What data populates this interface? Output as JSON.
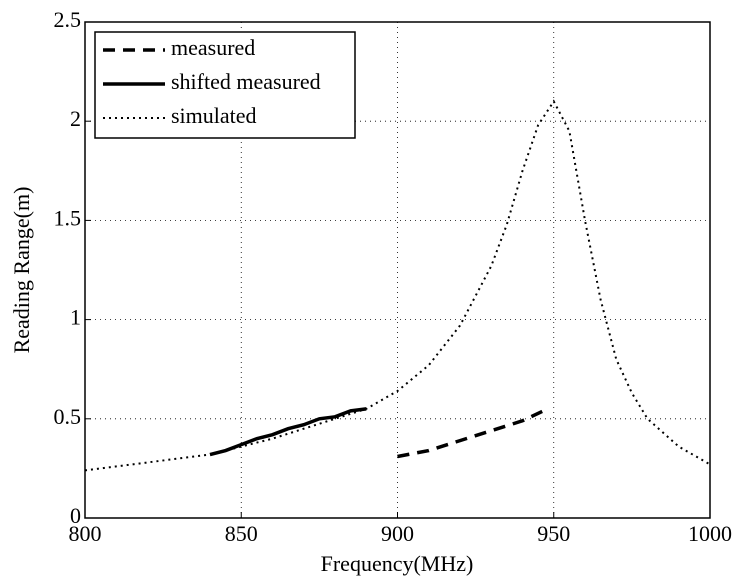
{
  "chart_data": {
    "type": "line",
    "xlabel": "Frequency(MHz)",
    "ylabel": "Reading Range(m)",
    "xlim": [
      800,
      1000
    ],
    "xticks": [
      800,
      850,
      900,
      950,
      1000
    ],
    "ylim": [
      0,
      2.5
    ],
    "yticks": [
      0,
      0.5,
      1,
      1.5,
      2,
      2.5
    ],
    "grid": true,
    "legend": "upper left",
    "series": [
      {
        "name": "measured",
        "color": "#000000",
        "dash": "dashed",
        "x": [
          900,
          910,
          920,
          930,
          940,
          948
        ],
        "values": [
          0.31,
          0.34,
          0.39,
          0.44,
          0.49,
          0.55
        ]
      },
      {
        "name": "shifted measured",
        "color": "#000000",
        "dash": "solid",
        "x": [
          840,
          845,
          850,
          855,
          860,
          865,
          870,
          875,
          880,
          885,
          890
        ],
        "values": [
          0.32,
          0.34,
          0.37,
          0.4,
          0.42,
          0.45,
          0.47,
          0.5,
          0.51,
          0.54,
          0.55
        ]
      },
      {
        "name": "simulated",
        "color": "#000000",
        "dash": "dotted",
        "x": [
          800,
          810,
          820,
          830,
          840,
          850,
          860,
          870,
          880,
          890,
          900,
          910,
          920,
          930,
          935,
          940,
          945,
          950,
          955,
          960,
          965,
          970,
          975,
          980,
          990,
          1000
        ],
        "values": [
          0.24,
          0.26,
          0.28,
          0.3,
          0.32,
          0.36,
          0.4,
          0.45,
          0.5,
          0.55,
          0.64,
          0.77,
          0.97,
          1.27,
          1.48,
          1.75,
          1.98,
          2.1,
          1.95,
          1.5,
          1.1,
          0.8,
          0.63,
          0.5,
          0.36,
          0.27
        ]
      }
    ]
  }
}
